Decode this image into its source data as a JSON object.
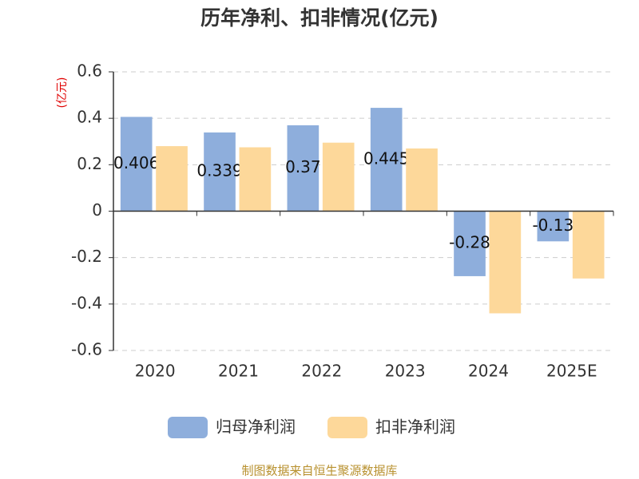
{
  "chart_data": {
    "type": "bar",
    "title": "历年净利、扣非情况(亿元)",
    "y_label": "(亿元)",
    "categories": [
      "2020",
      "2021",
      "2022",
      "2023",
      "2024",
      "2025E"
    ],
    "series": [
      {
        "name": "归母净利润",
        "color": "#8eaedc",
        "values": [
          0.406,
          0.339,
          0.37,
          0.445,
          -0.28,
          -0.13
        ],
        "show_labels": true
      },
      {
        "name": "扣非净利润",
        "color": "#fdd89a",
        "values": [
          0.28,
          0.275,
          0.295,
          0.27,
          -0.44,
          -0.29
        ],
        "show_labels": false
      }
    ],
    "ylim": [
      -0.6,
      0.6
    ],
    "yticks": [
      -0.6,
      -0.4,
      -0.2,
      0,
      0.2,
      0.4,
      0.6
    ],
    "grid": true,
    "source": "制图数据来自恒生聚源数据库"
  }
}
